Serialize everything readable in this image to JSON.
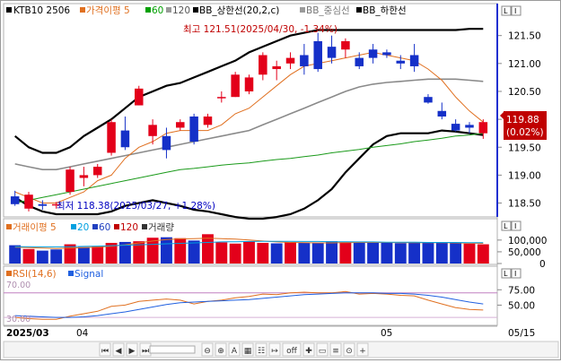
{
  "header": {
    "symbol": "KTB10 2506",
    "indicators": [
      {
        "label": "가격이평 5",
        "color": "#e07020"
      },
      {
        "label": "60",
        "color": "#00a000"
      },
      {
        "label": "120",
        "color": "#9a9a9a"
      },
      {
        "label": "BB_상한선(20,2,c)",
        "color": "#000000"
      },
      {
        "label": "BB_중심선",
        "color": "#9a9a9a"
      },
      {
        "label": "BB_하한선",
        "color": "#000000"
      }
    ]
  },
  "annotations": {
    "high": "최고 121.51(2025/04/30, -1.34%)",
    "low": "최저 118.38(2025/03/27, +1.28%)"
  },
  "current": {
    "price": "119.88",
    "change": "(0.02%)"
  },
  "volume_header": {
    "items": [
      {
        "label": "거래이평 5",
        "color": "#e07020"
      },
      {
        "label": "20",
        "color": "#00a0e0"
      },
      {
        "label": "60",
        "color": "#2040c0"
      },
      {
        "label": "120",
        "color": "#c00000"
      },
      {
        "label": "거래량",
        "color": "#333333"
      }
    ]
  },
  "rsi_header": {
    "rsi": "RSI(14,6)",
    "signal": "Signal"
  },
  "axis": {
    "price_ticks": [
      "121.50",
      "121.00",
      "120.50",
      "120.00",
      "119.50",
      "119.00",
      "118.50"
    ],
    "volume_ticks": [
      "100,000",
      "50,000",
      "0"
    ],
    "rsi_ticks": [
      "75.00",
      "50.00"
    ],
    "rsi_levels": [
      "70.00",
      "30.00"
    ],
    "x_labels": [
      "2025/03",
      "04",
      "05",
      "05/15"
    ]
  },
  "panel_buttons": [
    "L",
    "I"
  ],
  "toolbar": {
    "buttons": [
      "⏮",
      "◀",
      "▶",
      "⏭",
      "⊖",
      "⊕",
      "A",
      "▦",
      "☷",
      "↦",
      "off",
      "✚",
      "▭",
      "≡",
      "⊙",
      "+"
    ]
  },
  "chart_data": [
    {
      "type": "candlestick",
      "name": "price",
      "ylim": [
        118.3,
        121.8
      ],
      "candles": [
        {
          "o": 118.62,
          "h": 118.72,
          "l": 118.45,
          "c": 118.48
        },
        {
          "o": 118.4,
          "h": 118.7,
          "l": 118.35,
          "c": 118.65
        },
        {
          "o": 118.48,
          "h": 118.55,
          "l": 118.38,
          "c": 118.45
        },
        {
          "o": 118.48,
          "h": 118.52,
          "l": 118.4,
          "c": 118.48
        },
        {
          "o": 118.7,
          "h": 119.15,
          "l": 118.65,
          "c": 119.1
        },
        {
          "o": 118.95,
          "h": 119.15,
          "l": 118.8,
          "c": 119.0
        },
        {
          "o": 119.0,
          "h": 119.2,
          "l": 118.95,
          "c": 119.15
        },
        {
          "o": 119.4,
          "h": 120.0,
          "l": 119.35,
          "c": 119.95
        },
        {
          "o": 119.8,
          "h": 120.05,
          "l": 119.45,
          "c": 119.5
        },
        {
          "o": 120.25,
          "h": 120.6,
          "l": 120.25,
          "c": 120.55
        },
        {
          "o": 119.7,
          "h": 120.0,
          "l": 119.55,
          "c": 119.9
        },
        {
          "o": 119.7,
          "h": 119.85,
          "l": 119.3,
          "c": 119.45
        },
        {
          "o": 119.85,
          "h": 120.0,
          "l": 119.8,
          "c": 119.95
        },
        {
          "o": 120.05,
          "h": 120.1,
          "l": 119.55,
          "c": 119.6
        },
        {
          "o": 119.9,
          "h": 120.1,
          "l": 119.85,
          "c": 120.05
        },
        {
          "o": 120.4,
          "h": 120.5,
          "l": 120.3,
          "c": 120.4
        },
        {
          "o": 120.4,
          "h": 120.85,
          "l": 120.4,
          "c": 120.8
        },
        {
          "o": 120.5,
          "h": 120.8,
          "l": 120.45,
          "c": 120.75
        },
        {
          "o": 120.8,
          "h": 121.2,
          "l": 120.7,
          "c": 121.15
        },
        {
          "o": 120.9,
          "h": 121.05,
          "l": 120.7,
          "c": 120.95
        },
        {
          "o": 121.0,
          "h": 121.2,
          "l": 120.9,
          "c": 121.1
        },
        {
          "o": 121.15,
          "h": 121.35,
          "l": 120.8,
          "c": 120.95
        },
        {
          "o": 121.4,
          "h": 121.55,
          "l": 120.85,
          "c": 120.9
        },
        {
          "o": 121.3,
          "h": 121.5,
          "l": 121.0,
          "c": 121.1
        },
        {
          "o": 121.25,
          "h": 121.45,
          "l": 121.1,
          "c": 121.4
        },
        {
          "o": 121.1,
          "h": 121.2,
          "l": 120.9,
          "c": 120.95
        },
        {
          "o": 121.25,
          "h": 121.35,
          "l": 121.0,
          "c": 121.1
        },
        {
          "o": 121.2,
          "h": 121.25,
          "l": 121.1,
          "c": 121.15
        },
        {
          "o": 121.05,
          "h": 121.15,
          "l": 120.9,
          "c": 121.0
        },
        {
          "o": 121.15,
          "h": 121.35,
          "l": 120.85,
          "c": 120.95
        },
        {
          "o": 120.4,
          "h": 120.45,
          "l": 120.28,
          "c": 120.3
        },
        {
          "o": 120.15,
          "h": 120.3,
          "l": 120.0,
          "c": 120.05
        },
        {
          "o": 119.92,
          "h": 120.0,
          "l": 119.78,
          "c": 119.8
        },
        {
          "o": 119.9,
          "h": 119.95,
          "l": 119.75,
          "c": 119.85
        },
        {
          "o": 119.75,
          "h": 120.0,
          "l": 119.65,
          "c": 119.95
        }
      ],
      "series": [
        {
          "name": "BB_상한선",
          "values": [
            119.7,
            119.5,
            119.4,
            119.4,
            119.5,
            119.7,
            119.85,
            120.0,
            120.2,
            120.4,
            120.5,
            120.6,
            120.65,
            120.75,
            120.85,
            120.95,
            121.05,
            121.2,
            121.3,
            121.4,
            121.5,
            121.55,
            121.6,
            121.6,
            121.6,
            121.6,
            121.6,
            121.6,
            121.6,
            121.6,
            121.6,
            121.6,
            121.6,
            121.62,
            121.62
          ]
        },
        {
          "name": "BB_중심선",
          "values": [
            119.2,
            119.15,
            119.1,
            119.1,
            119.15,
            119.2,
            119.25,
            119.3,
            119.35,
            119.4,
            119.45,
            119.5,
            119.55,
            119.6,
            119.65,
            119.7,
            119.75,
            119.8,
            119.9,
            120.0,
            120.1,
            120.2,
            120.3,
            120.4,
            120.5,
            120.58,
            120.63,
            120.66,
            120.68,
            120.7,
            120.72,
            120.72,
            120.72,
            120.7,
            120.68
          ]
        },
        {
          "name": "BB_하한선",
          "values": [
            118.6,
            118.45,
            118.35,
            118.3,
            118.3,
            118.3,
            118.3,
            118.35,
            118.45,
            118.5,
            118.55,
            118.5,
            118.45,
            118.38,
            118.35,
            118.3,
            118.25,
            118.22,
            118.22,
            118.25,
            118.3,
            118.4,
            118.55,
            118.75,
            119.05,
            119.3,
            119.55,
            119.7,
            119.75,
            119.75,
            119.75,
            119.8,
            119.78,
            119.75,
            119.72
          ]
        },
        {
          "name": "가격이평 5",
          "values": [
            118.7,
            118.6,
            118.5,
            118.5,
            118.6,
            118.7,
            118.9,
            119.0,
            119.3,
            119.5,
            119.6,
            119.75,
            119.8,
            119.8,
            119.8,
            119.9,
            120.1,
            120.2,
            120.4,
            120.6,
            120.8,
            120.95,
            121.0,
            121.05,
            121.1,
            121.15,
            121.2,
            121.15,
            121.1,
            121.05,
            120.9,
            120.7,
            120.4,
            120.15,
            119.95
          ]
        },
        {
          "name": "60",
          "values": [
            118.5,
            118.55,
            118.6,
            118.65,
            118.7,
            118.75,
            118.8,
            118.85,
            118.9,
            118.95,
            119.0,
            119.05,
            119.1,
            119.12,
            119.15,
            119.18,
            119.2,
            119.22,
            119.25,
            119.28,
            119.3,
            119.33,
            119.36,
            119.4,
            119.43,
            119.46,
            119.5,
            119.53,
            119.56,
            119.6,
            119.63,
            119.66,
            119.7,
            119.72,
            119.75
          ]
        }
      ]
    },
    {
      "type": "bar",
      "name": "volume",
      "ylim": [
        0,
        130000
      ],
      "values": [
        78000,
        62000,
        55000,
        60000,
        82000,
        70000,
        74000,
        88000,
        92000,
        95000,
        110000,
        112000,
        108000,
        98000,
        125000,
        90000,
        85000,
        94000,
        88000,
        86000,
        92000,
        89000,
        87000,
        95000,
        91000,
        88000,
        93000,
        90000,
        87000,
        92000,
        89000,
        91000,
        88000,
        85000,
        82000
      ],
      "up": [
        false,
        true,
        false,
        false,
        true,
        false,
        true,
        true,
        false,
        true,
        true,
        false,
        true,
        false,
        true,
        true,
        true,
        true,
        true,
        false,
        true,
        false,
        false,
        false,
        true,
        false,
        false,
        false,
        false,
        false,
        false,
        false,
        false,
        true,
        true
      ],
      "series": [
        {
          "name": "거래이평 5",
          "values": [
            70000,
            68000,
            66000,
            64000,
            66000,
            68000,
            70000,
            74000,
            80000,
            88000,
            96000,
            102000,
            105000,
            106000,
            108000,
            106000,
            104000,
            100000,
            96000,
            92000,
            90000,
            89000,
            88000,
            88000,
            89000,
            90000,
            90000,
            90000,
            89000,
            89000,
            89000,
            89000,
            88000,
            87000,
            86000
          ]
        },
        {
          "name": "20",
          "values": [
            72000,
            72000,
            71000,
            71000,
            72000,
            73000,
            74000,
            76000,
            78000,
            80000,
            82000,
            84000,
            86000,
            88000,
            90000,
            92000,
            93000,
            94000,
            95000,
            95000,
            95000,
            94000,
            94000,
            93000,
            93000,
            92000,
            92000,
            91000,
            91000,
            91000,
            90000,
            90000,
            90000,
            89000,
            89000
          ]
        }
      ]
    },
    {
      "type": "line",
      "name": "rsi",
      "ylim": [
        20,
        90
      ],
      "levels": [
        70,
        30
      ],
      "series": [
        {
          "name": "RSI(14,6)",
          "values": [
            30,
            28,
            27,
            27,
            32,
            36,
            40,
            48,
            50,
            56,
            58,
            60,
            58,
            52,
            56,
            58,
            62,
            64,
            68,
            67,
            70,
            71,
            70,
            70,
            72,
            68,
            69,
            68,
            66,
            65,
            58,
            52,
            46,
            43,
            42
          ]
        },
        {
          "name": "Signal",
          "values": [
            33,
            32,
            31,
            30,
            30,
            31,
            33,
            36,
            39,
            43,
            47,
            51,
            54,
            55,
            56,
            57,
            58,
            59,
            61,
            63,
            65,
            67,
            68,
            69,
            70,
            70,
            70,
            69,
            69,
            68,
            66,
            63,
            59,
            55,
            52
          ]
        }
      ]
    }
  ]
}
